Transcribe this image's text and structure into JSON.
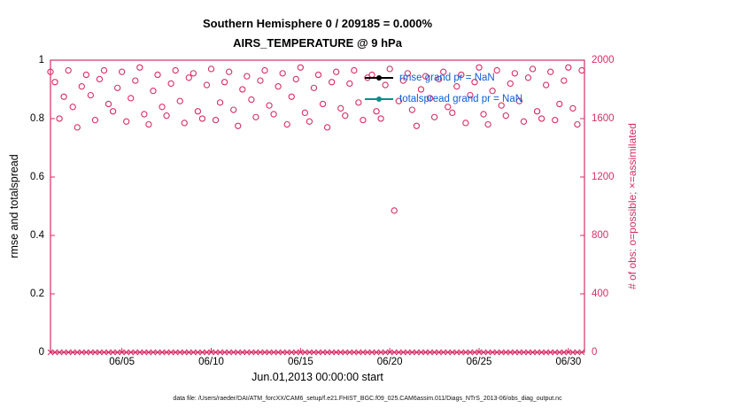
{
  "figure": {
    "title_line1": "Southern Hemisphere 0 / 209185 = 0.000%",
    "title_line2": "AIRS_TEMPERATURE @ 9 hPa",
    "caption": "data file: /Users/raeder/DAI/ATM_forcXX/CAM6_setup/f.e21.FHIST_BGC.f09_025.CAM6assim.011/Diags_NTrS_2013-06/obs_diag_output.nc"
  },
  "legend": {
    "rmse_label": "rmse grand pr = NaN",
    "totalspread_label": "totalspread grand pr = NaN"
  },
  "colors": {
    "obs": "#d62e66",
    "rmse": "#000000",
    "totalspread": "#0e8b8b",
    "legend_text": "#0b5ed7",
    "left_axis_text": "#000000"
  },
  "chart_data": {
    "type": "scatter",
    "title": "Southern Hemisphere 0 / 209185 = 0.000%",
    "subtitle": "AIRS_TEMPERATURE @ 9 hPa",
    "xlabel": "Jun.01,2013 00:00:00 start",
    "ylabel_left": "rmse and totalspread",
    "ylabel_right": "# of obs: o=possible; ×=assimilated",
    "x_range": [
      1.0,
      30.9
    ],
    "left_range": [
      0,
      1
    ],
    "right_range": [
      0,
      2000
    ],
    "grid": false,
    "legend_position": "top-center-inside",
    "x_ticks": [
      {
        "day": 5,
        "label": "06/05"
      },
      {
        "day": 10,
        "label": "06/10"
      },
      {
        "day": 15,
        "label": "06/15"
      },
      {
        "day": 20,
        "label": "06/20"
      },
      {
        "day": 25,
        "label": "06/25"
      },
      {
        "day": 30,
        "label": "06/30"
      }
    ],
    "left_ticks": [
      {
        "v": 0,
        "label": "0"
      },
      {
        "v": 0.2,
        "label": "0.2"
      },
      {
        "v": 0.4,
        "label": "0.4"
      },
      {
        "v": 0.6,
        "label": "0.6"
      },
      {
        "v": 0.8,
        "label": "0.8"
      },
      {
        "v": 1,
        "label": "1"
      }
    ],
    "right_ticks": [
      {
        "v": 0,
        "label": "0"
      },
      {
        "v": 400,
        "label": "400"
      },
      {
        "v": 800,
        "label": "800"
      },
      {
        "v": 1200,
        "label": "1200"
      },
      {
        "v": 1600,
        "label": "1600"
      },
      {
        "v": 2000,
        "label": "2000"
      }
    ],
    "series": [
      {
        "name": "possible observations",
        "marker": "circle",
        "axis": "right",
        "x_start": 1.0,
        "x_step": 0.25,
        "values": [
          1920,
          1850,
          1600,
          1750,
          1930,
          1680,
          1540,
          1820,
          1900,
          1760,
          1590,
          1870,
          1930,
          1700,
          1650,
          1810,
          1920,
          1580,
          1740,
          1860,
          1950,
          1630,
          1560,
          1790,
          1900,
          1680,
          1620,
          1840,
          1930,
          1720,
          1570,
          1880,
          1910,
          1650,
          1600,
          1830,
          1940,
          1590,
          1710,
          1850,
          1920,
          1660,
          1550,
          1800,
          1890,
          1730,
          1610,
          1860,
          1930,
          1690,
          1630,
          1820,
          1910,
          1560,
          1750,
          1870,
          1950,
          1640,
          1580,
          1810,
          1900,
          1700,
          1540,
          1850,
          1920,
          1670,
          1620,
          1840,
          1930,
          1710,
          1590,
          1880,
          1900,
          1650,
          1600,
          1830,
          1940,
          970,
          1720,
          1860,
          1910,
          1660,
          1550,
          1800,
          1890,
          1740,
          1610,
          1870,
          1920,
          1680,
          1640,
          1820,
          1900,
          1570,
          1760,
          1850,
          1950,
          1630,
          1560,
          1790,
          1930,
          1690,
          1620,
          1840,
          1910,
          1720,
          1580,
          1880,
          1940,
          1650,
          1600,
          1830,
          1920,
          1590,
          1700,
          1860,
          1950,
          1670,
          1560,
          1930
        ]
      },
      {
        "name": "assimilated observations",
        "marker": "x",
        "axis": "right",
        "x_start": 1.0,
        "x_step": 0.25,
        "constant_value": 0,
        "count": 120
      }
    ],
    "rmse_grand_mean": "NaN",
    "totalspread_grand_mean": "NaN"
  }
}
